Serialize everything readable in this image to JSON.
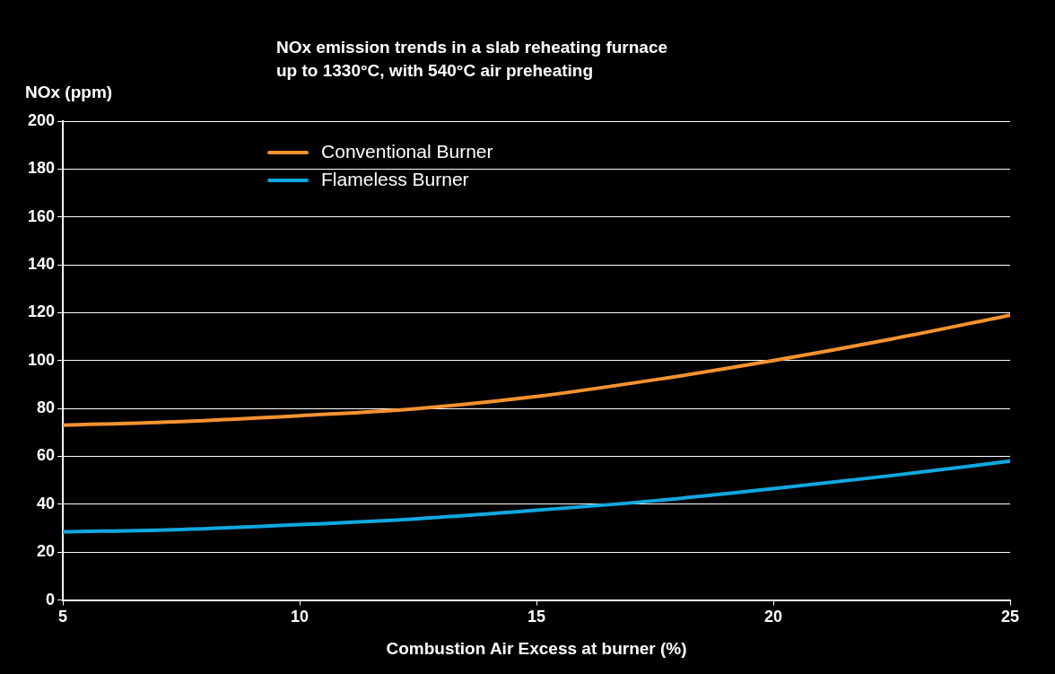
{
  "chart_data": {
    "type": "line",
    "title": "NOx emission trends in a slab reheating furnace\nup to 1330°C, with 540°C air preheating",
    "ylabel": "NOx (ppm)",
    "xlabel": "Combustion Air Excess at burner (%)",
    "x": [
      5,
      7.5,
      10,
      12.5,
      15,
      17.5,
      20,
      22.5,
      25
    ],
    "series": [
      {
        "name": "Conventional Burner",
        "color": "#f7922f",
        "values": [
          73,
          74.5,
          77,
          80,
          85,
          92,
          100,
          109,
          119
        ]
      },
      {
        "name": "Flameless Burner",
        "color": "#10a8e0",
        "values": [
          28.5,
          29.5,
          31.5,
          34,
          37.5,
          41.5,
          46.5,
          52,
          58
        ]
      }
    ],
    "xlim": [
      5,
      25
    ],
    "xticks": [
      5,
      10,
      15,
      20,
      25
    ],
    "ylim": [
      0,
      200
    ],
    "yticks": [
      0,
      20,
      40,
      60,
      80,
      100,
      120,
      140,
      160,
      180,
      200
    ],
    "grid": "y",
    "legend": "top left",
    "marker": "none",
    "line_style": "solid"
  }
}
